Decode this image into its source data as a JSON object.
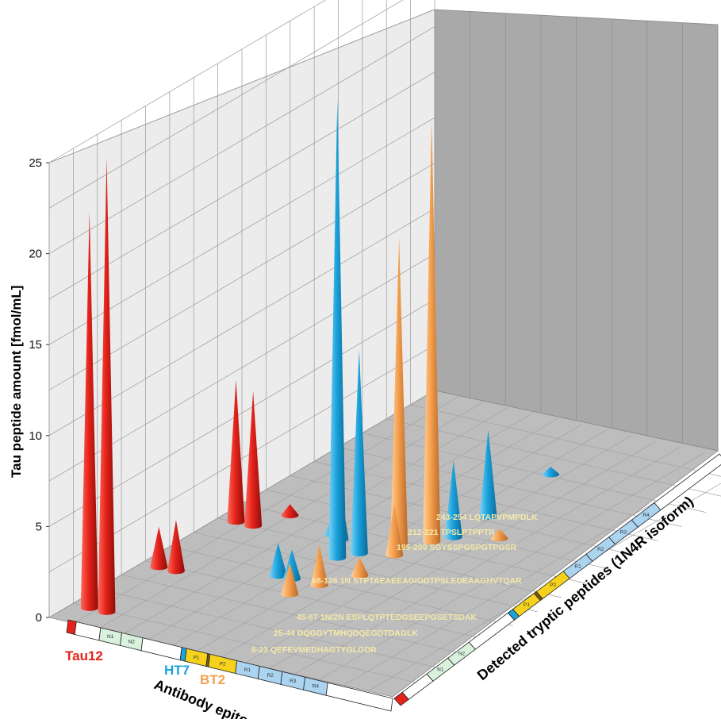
{
  "chart_data": {
    "type": "bar",
    "subtype": "3d-cone",
    "ylabel": "Tau peptide amount [fmol/mL]",
    "x_axis_title": "Antibody epitope",
    "z_axis_title": "Detected tryptic peptides (1N4R isoform)",
    "ylim": [
      0,
      25
    ],
    "y_ticks": [
      "0",
      "5",
      "10",
      "15",
      "20",
      "25"
    ],
    "grid": true,
    "series": [
      {
        "name": "Tau12",
        "color": "#e5231b",
        "values": [
          null,
          7.8,
          7.4,
          2.2,
          2.8,
          21.8,
          25.0,
          null,
          null,
          null,
          null,
          null,
          null
        ]
      },
      {
        "name": "HT7",
        "color": "#1ba3dd",
        "values": [
          null,
          1.8,
          1.6,
          1.0,
          3.0,
          4.2,
          4.8,
          null,
          null,
          0.4,
          11.2,
          25.2,
          null
        ]
      },
      {
        "name": "BT2",
        "color": "#f5a04e",
        "values": [
          null,
          1.7,
          1.0,
          2.8,
          4.0,
          0.6,
          null,
          null,
          null,
          0.5,
          17.0,
          23.2,
          null
        ]
      }
    ],
    "peptide_labels": [
      "6-23 QEFEVMEDHAGTYGLGDR",
      "25-44 DQGGYTMHQDQEGDTDAGLK",
      "45-67 1N/2N ESPLQTPTEDGSEEPGSETSDAK",
      "68-126 1N STPTAEAEEAGIGDTPSLEDEAAGHVTQAR",
      "195-209 SGYSSPGSPGTPGSR",
      "212-221 TPSLPTPPTR",
      "243-254 LQTAPVPMPDLK"
    ],
    "antibody_labels": {
      "tau12": "Tau12",
      "ht7": "HT7",
      "bt2": "BT2"
    },
    "domain_bands": [
      "N1",
      "N2",
      "P1",
      "P2",
      "R1",
      "R2",
      "R3",
      "R4"
    ]
  }
}
